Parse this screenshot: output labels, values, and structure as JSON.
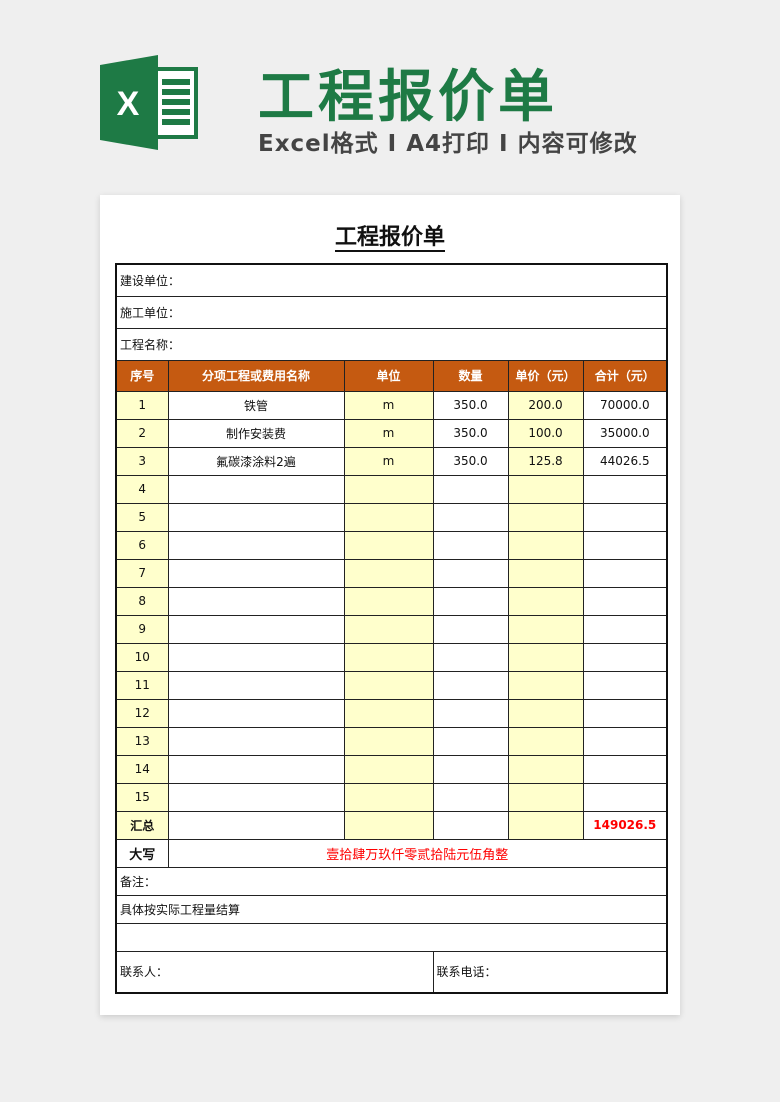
{
  "banner": {
    "title": "工程报价单",
    "subtitle": "Excel格式 I A4打印 I 内容可修改",
    "brand_color": "#1e7a45"
  },
  "doc": {
    "title": "工程报价单",
    "info": [
      "建设单位：",
      "施工单位：",
      "工程名称："
    ],
    "headers": [
      "序号",
      "分项工程或费用名称",
      "单位",
      "数量",
      "单价（元）",
      "合计（元）"
    ],
    "header_color": "#c55a11",
    "rows": [
      [
        "1",
        "铁管",
        "m",
        "350.0",
        "200.0",
        "70000.0"
      ],
      [
        "2",
        "制作安装费",
        "m",
        "350.0",
        "100.0",
        "35000.0"
      ],
      [
        "3",
        "氟碳漆涂料2遍",
        "m",
        "350.0",
        "125.8",
        "44026.5"
      ],
      [
        "4",
        "",
        "",
        "",
        "",
        ""
      ],
      [
        "5",
        "",
        "",
        "",
        "",
        ""
      ],
      [
        "6",
        "",
        "",
        "",
        "",
        ""
      ],
      [
        "7",
        "",
        "",
        "",
        "",
        ""
      ],
      [
        "8",
        "",
        "",
        "",
        "",
        ""
      ],
      [
        "9",
        "",
        "",
        "",
        "",
        ""
      ],
      [
        "10",
        "",
        "",
        "",
        "",
        ""
      ],
      [
        "11",
        "",
        "",
        "",
        "",
        ""
      ],
      [
        "12",
        "",
        "",
        "",
        "",
        ""
      ],
      [
        "13",
        "",
        "",
        "",
        "",
        ""
      ],
      [
        "14",
        "",
        "",
        "",
        "",
        ""
      ],
      [
        "15",
        "",
        "",
        "",
        "",
        ""
      ]
    ],
    "total_label": "汇总",
    "total_value": "149026.5",
    "capital_label": "大写",
    "capital_value": "壹拾肆万玖仟零贰拾陆元伍角整",
    "remark_label": "备注：",
    "remark_text": "具体按实际工程量结算",
    "contact_label": "联系人：",
    "phone_label": "联系电话："
  }
}
